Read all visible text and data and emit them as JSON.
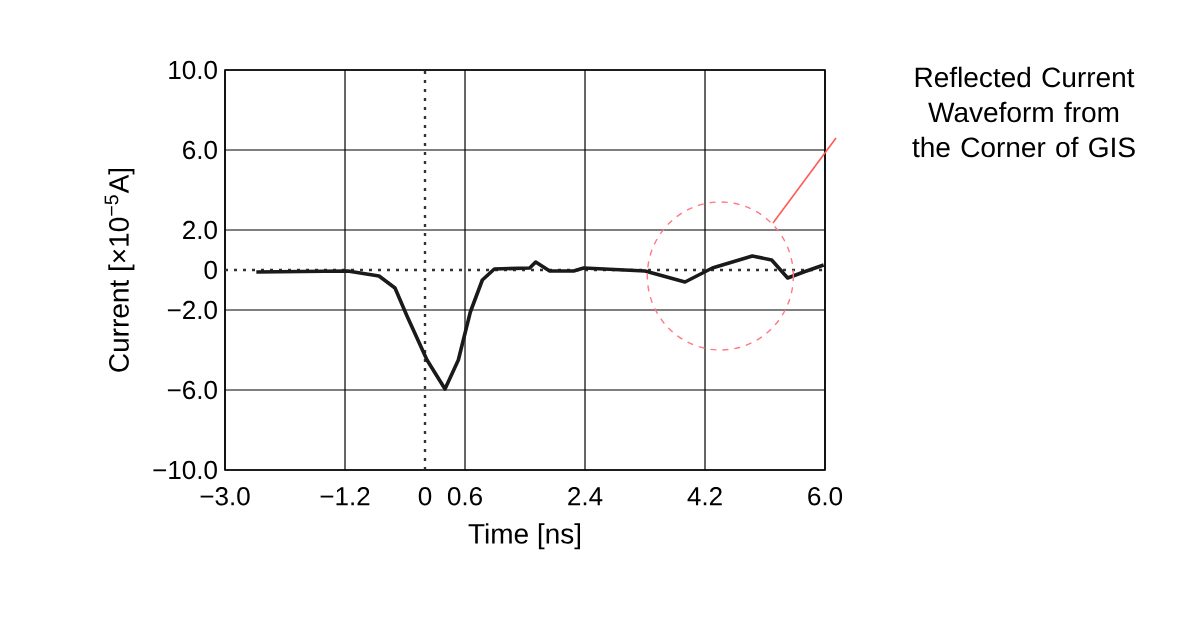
{
  "chart_data": {
    "type": "line",
    "xlabel": "Time [ns]",
    "ylabel": "Current [×10$^{−5}$A]",
    "annotations": [
      "Reflected Current Waveform from the Corner of GIS"
    ],
    "xlim": [
      -3.0,
      6.0
    ],
    "xticks": [
      {
        "value": -3.0,
        "label": "−3.0"
      },
      {
        "value": -1.2,
        "label": "−1.2"
      },
      0,
      0.6,
      2.4,
      4.2,
      {
        "value": 6.0,
        "label": "6.0"
      }
    ],
    "ylim": [
      -10.0,
      10.0
    ],
    "yticks": [
      {
        "value": -10.0,
        "label": "−10.0"
      },
      {
        "value": -6.0,
        "label": "−6.0"
      },
      {
        "value": -2.0,
        "label": "−2.0"
      },
      0,
      {
        "value": 2.0,
        "label": "2.0"
      },
      {
        "value": 6.0,
        "label": "6.0"
      },
      {
        "value": 10.0,
        "label": "10.0"
      }
    ],
    "grid": true,
    "line_style": "solid",
    "marker": "none",
    "series": [
      {
        "color": "#1a1a1a",
        "x": [
          -2.53,
          -1.16,
          -0.69,
          -0.45,
          -0.27,
          0.03,
          0.3,
          0.5,
          0.68,
          0.86,
          1.04,
          1.57,
          1.66,
          1.87,
          2.23,
          2.38,
          3.3,
          3.9,
          4.31,
          4.91,
          5.2,
          5.44,
          5.68,
          5.98
        ],
        "values": [
          -0.1,
          -0.05,
          -0.3,
          -0.9,
          -2.3,
          -4.5,
          -5.95,
          -4.5,
          -2.1,
          -0.5,
          0.05,
          0.1,
          0.4,
          -0.05,
          -0.05,
          0.1,
          -0.05,
          -0.6,
          0.1,
          0.7,
          0.5,
          -0.4,
          -0.1,
          0.25
        ]
      }
    ]
  }
}
